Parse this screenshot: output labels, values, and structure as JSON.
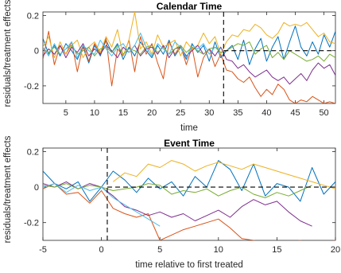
{
  "colors": [
    "#0072BD",
    "#D95319",
    "#EDB120",
    "#7E2F8E",
    "#77AC30",
    "#4DBEEE",
    "#A2142F"
  ],
  "chart_data": [
    {
      "type": "line",
      "title": "Calendar Time",
      "xlabel": "time",
      "ylabel": "residuals/treatment effects",
      "xlim": [
        1,
        52
      ],
      "ylim": [
        -0.3,
        0.22
      ],
      "xticks": [
        5,
        10,
        15,
        20,
        25,
        30,
        35,
        40,
        45,
        50
      ],
      "yticks": [
        -0.2,
        0,
        0.2
      ],
      "ytick_labels": [
        "-0.2",
        "0",
        "0.2"
      ],
      "treatment_line_x": 32.5,
      "zero_line": "dashed from x=32.5",
      "series": [
        {
          "x": [
            1,
            2,
            3,
            4,
            5,
            6,
            7,
            8,
            9,
            10,
            11,
            12,
            13,
            14,
            15,
            16,
            17,
            18,
            19,
            20,
            21,
            22,
            23,
            24,
            25,
            26,
            27,
            28,
            29,
            30,
            31,
            32,
            33,
            34,
            35,
            36,
            37,
            38,
            39,
            40,
            41,
            42,
            43,
            44,
            45,
            46,
            47,
            48,
            49,
            50,
            51,
            52
          ],
          "values": [
            0.07,
            -0.02,
            0.03,
            -0.03,
            0.04,
            0.0,
            -0.05,
            0.02,
            -0.07,
            0.03,
            -0.03,
            0.06,
            -0.01,
            0.04,
            -0.05,
            0.02,
            -0.03,
            0.05,
            0.0,
            -0.04,
            0.03,
            -0.02,
            0.06,
            -0.03,
            0.02,
            -0.05,
            0.04,
            -0.01,
            0.03,
            -0.06,
            0.05,
            -0.04,
            0.0,
            0.03,
            -0.05,
            0.06,
            -0.08,
            0.01,
            0.07,
            -0.06,
            0.02,
            0.08,
            -0.05,
            0.05,
            0.14,
            0.02,
            -0.03,
            0.05,
            -0.02,
            0.09,
            0.02,
            0.11
          ]
        },
        {
          "x": [
            1,
            2,
            3,
            4,
            5,
            6,
            7,
            8,
            9,
            10,
            11,
            12,
            13,
            14,
            15,
            16,
            17,
            18,
            19,
            20,
            21,
            22,
            23,
            24,
            25,
            26,
            27,
            28,
            29,
            30,
            31,
            32,
            33,
            34,
            35,
            36,
            37,
            38,
            39,
            40,
            41,
            42,
            43,
            44,
            45,
            46,
            47,
            48,
            49,
            50,
            51,
            52
          ],
          "values": [
            -0.05,
            0.11,
            -0.08,
            0.03,
            -0.02,
            0.05,
            -0.12,
            0.03,
            -0.06,
            0.04,
            -0.02,
            0.07,
            -0.2,
            0.01,
            -0.03,
            0.06,
            -0.12,
            0.08,
            -0.02,
            0.04,
            -0.07,
            -0.16,
            0.05,
            -0.02,
            0.03,
            -0.08,
            0.02,
            -0.15,
            -0.04,
            0.01,
            -0.09,
            -0.02,
            -0.11,
            -0.12,
            -0.16,
            -0.18,
            -0.15,
            -0.21,
            -0.26,
            -0.22,
            -0.25,
            -0.19,
            -0.22,
            -0.28,
            -0.3,
            -0.28,
            -0.29,
            -0.26,
            -0.28,
            -0.3,
            -0.29,
            -0.3
          ]
        },
        {
          "x": [
            1,
            2,
            3,
            4,
            5,
            6,
            7,
            8,
            9,
            10,
            11,
            12,
            13,
            14,
            15,
            16,
            17,
            18,
            19,
            20,
            21,
            22,
            23,
            24,
            25,
            26,
            27,
            28,
            29,
            30,
            31,
            32,
            33,
            34,
            35,
            36,
            37,
            38,
            39,
            40,
            41,
            42,
            43,
            44,
            45,
            46,
            47,
            48,
            49,
            50,
            51,
            52
          ],
          "values": [
            0.02,
            0.08,
            -0.04,
            0.05,
            -0.02,
            0.03,
            0.06,
            -0.04,
            0.02,
            0.05,
            -0.01,
            0.08,
            0.02,
            0.12,
            -0.03,
            0.06,
            0.22,
            0.01,
            0.05,
            -0.02,
            0.09,
            0.02,
            0.04,
            0.06,
            -0.03,
            0.05,
            0.01,
            0.03,
            0.1,
            0.04,
            0.08,
            -0.02,
            0.05,
            0.09,
            0.08,
            0.12,
            0.11,
            0.15,
            0.13,
            0.09,
            0.07,
            0.1,
            0.16,
            0.14,
            0.15,
            0.14,
            0.16,
            0.12,
            0.08,
            0.1,
            0.05,
            0.04
          ]
        },
        {
          "x": [
            1,
            2,
            3,
            4,
            5,
            6,
            7,
            8,
            9,
            10,
            11,
            12,
            13,
            14,
            15,
            16,
            17,
            18,
            19,
            20,
            21,
            22,
            23,
            24,
            25,
            26,
            27,
            28,
            29,
            30,
            31,
            32,
            33,
            34,
            35,
            36,
            37,
            38,
            39,
            40,
            41,
            42,
            43,
            44,
            45,
            46,
            47,
            48,
            49,
            50,
            51,
            52
          ],
          "values": [
            -0.03,
            0.01,
            -0.02,
            0.03,
            -0.04,
            0.02,
            -0.01,
            0.04,
            -0.03,
            0.01,
            -0.02,
            0.03,
            0.0,
            -0.04,
            0.02,
            -0.01,
            0.03,
            -0.03,
            0.01,
            0.02,
            -0.02,
            0.03,
            -0.04,
            0.01,
            0.02,
            -0.03,
            0.0,
            0.03,
            -0.02,
            0.01,
            -0.03,
            0.02,
            -0.05,
            -0.06,
            -0.1,
            -0.08,
            -0.12,
            -0.15,
            -0.13,
            -0.11,
            -0.15,
            -0.17,
            -0.15,
            -0.19,
            -0.16,
            -0.13,
            -0.17,
            -0.11,
            -0.07,
            -0.1,
            -0.08,
            -0.14
          ]
        },
        {
          "x": [
            1,
            2,
            3,
            4,
            5,
            6,
            7,
            8,
            9,
            10,
            11,
            12,
            13,
            14,
            15,
            16,
            17,
            18,
            19,
            20,
            21,
            22,
            23,
            24,
            25,
            26,
            27,
            28,
            29,
            30,
            31,
            32,
            33,
            34,
            35,
            36,
            37,
            38,
            39,
            40,
            41,
            42,
            43,
            44,
            45,
            46,
            47,
            48,
            49,
            50,
            51,
            52
          ],
          "values": [
            0.01,
            -0.01,
            0.02,
            -0.02,
            0.01,
            0.03,
            -0.02,
            0.0,
            0.02,
            -0.03,
            0.01,
            0.02,
            -0.01,
            0.03,
            -0.02,
            0.01,
            0.0,
            -0.02,
            0.02,
            0.03,
            -0.01,
            0.02,
            -0.02,
            0.01,
            0.03,
            -0.01,
            0.02,
            0.0,
            -0.02,
            0.01,
            0.02,
            -0.01,
            0.0,
            0.02,
            0.04,
            0.03,
            0.05,
            -0.02,
            0.01,
            0.03,
            -0.04,
            -0.01,
            -0.05,
            0.0,
            -0.02,
            -0.04,
            -0.06,
            -0.05,
            -0.03,
            -0.06,
            -0.02,
            -0.04
          ]
        },
        {
          "x": [
            1,
            2,
            3,
            4,
            5,
            6,
            7,
            8,
            9,
            10,
            11,
            12,
            13,
            14,
            15,
            16,
            17,
            18,
            19,
            20,
            21,
            22,
            23,
            24,
            25,
            26,
            27,
            28,
            29,
            30,
            31,
            32
          ],
          "values": [
            0.02,
            -0.03,
            0.04,
            -0.02,
            0.01,
            0.05,
            -0.04,
            0.03,
            0.0,
            -0.02,
            0.06,
            0.01,
            -0.03,
            0.02,
            0.04,
            -0.01,
            0.03,
            0.1,
            0.02,
            -0.03,
            0.04,
            0.01,
            -0.02,
            0.05,
            0.02,
            -0.04,
            0.03,
            0.01,
            0.04,
            -0.02,
            0.02,
            0.01
          ]
        }
      ]
    },
    {
      "type": "line",
      "title": "Event Time",
      "xlabel": "time relative to first treated",
      "ylabel": "residuals/treatment effects",
      "xlim": [
        -5,
        20
      ],
      "ylim": [
        -0.3,
        0.22
      ],
      "xticks": [
        -5,
        0,
        5,
        10,
        15,
        20
      ],
      "yticks": [
        -0.2,
        0,
        0.2
      ],
      "ytick_labels": [
        "-0.2",
        "0",
        "0.2"
      ],
      "treatment_line_x": 0.5,
      "zero_line": "dashed from x=0.5",
      "series": [
        {
          "x": [
            -5,
            -4,
            -3,
            -2,
            -1,
            0,
            1,
            2,
            3,
            4,
            5,
            6,
            7,
            8,
            9,
            10,
            11,
            12,
            13,
            14,
            15,
            16,
            17,
            18,
            19,
            20
          ],
          "values": [
            0.09,
            0.02,
            -0.01,
            0.03,
            -0.08,
            0.0,
            0.09,
            0.04,
            -0.03,
            0.05,
            -0.01,
            0.03,
            -0.05,
            0.06,
            0.0,
            0.15,
            0.1,
            -0.02,
            0.13,
            -0.05,
            0.02,
            0.0,
            -0.08,
            0.11,
            -0.04,
            0.03
          ]
        },
        {
          "x": [
            -5,
            -4,
            -3,
            -2,
            -1,
            0,
            1,
            2,
            3,
            4,
            5,
            6,
            7,
            8,
            9,
            10,
            11,
            12,
            13,
            14,
            15,
            16,
            17,
            18,
            19,
            20
          ],
          "values": [
            -0.01,
            0.02,
            -0.04,
            -0.03,
            -0.09,
            -0.02,
            -0.12,
            -0.15,
            -0.17,
            -0.15,
            -0.3,
            -0.27,
            -0.24,
            -0.22,
            -0.2,
            -0.18,
            -0.23,
            -0.29,
            -0.3,
            -0.31,
            -0.32,
            -0.31,
            -0.3,
            -0.32,
            -0.31,
            -0.3
          ]
        },
        {
          "x": [
            1,
            2,
            3,
            4,
            5,
            6,
            7,
            8,
            9,
            10,
            11,
            12,
            13,
            14,
            15,
            16,
            17,
            18,
            19,
            20
          ],
          "values": [
            0.03,
            0.08,
            0.06,
            0.13,
            0.11,
            0.15,
            0.13,
            0.09,
            0.12,
            0.14,
            0.12,
            0.1,
            0.13,
            0.11,
            0.09,
            0.07,
            0.05,
            0.03,
            0.01,
            -0.01
          ]
        },
        {
          "x": [
            -5,
            -4,
            -3,
            -2,
            -1,
            0,
            1,
            2,
            3,
            4,
            5,
            6,
            7,
            8,
            9,
            10,
            11,
            12,
            13,
            14,
            15,
            16,
            17,
            18
          ],
          "values": [
            0.02,
            0.0,
            0.03,
            -0.01,
            0.02,
            0.0,
            -0.05,
            -0.11,
            -0.13,
            -0.16,
            -0.14,
            -0.17,
            -0.15,
            -0.19,
            -0.16,
            -0.13,
            -0.17,
            -0.11,
            -0.07,
            -0.1,
            -0.08,
            -0.14,
            -0.19,
            -0.22
          ]
        },
        {
          "x": [
            -5,
            -4,
            -3,
            -2,
            -1,
            0,
            1,
            2,
            3,
            4,
            5,
            6,
            7,
            8,
            9,
            10,
            11,
            12,
            13,
            14,
            15,
            16,
            17,
            18
          ],
          "values": [
            0.01,
            0.0,
            0.02,
            -0.01,
            0.01,
            0.0,
            -0.02,
            -0.01,
            0.0,
            0.02,
            0.01,
            -0.04,
            -0.02,
            -0.03,
            -0.01,
            -0.05,
            -0.02,
            0.0,
            -0.04,
            -0.06,
            -0.03,
            -0.05,
            -0.02,
            0.01
          ]
        },
        {
          "x": [
            -5,
            -4,
            -3,
            -2,
            -1,
            0,
            1,
            2,
            3,
            4,
            5
          ],
          "values": [
            0.0,
            0.02,
            -0.03,
            0.01,
            -0.02,
            0.0,
            -0.06,
            -0.1,
            -0.14,
            -0.18,
            -0.22
          ]
        }
      ]
    }
  ]
}
